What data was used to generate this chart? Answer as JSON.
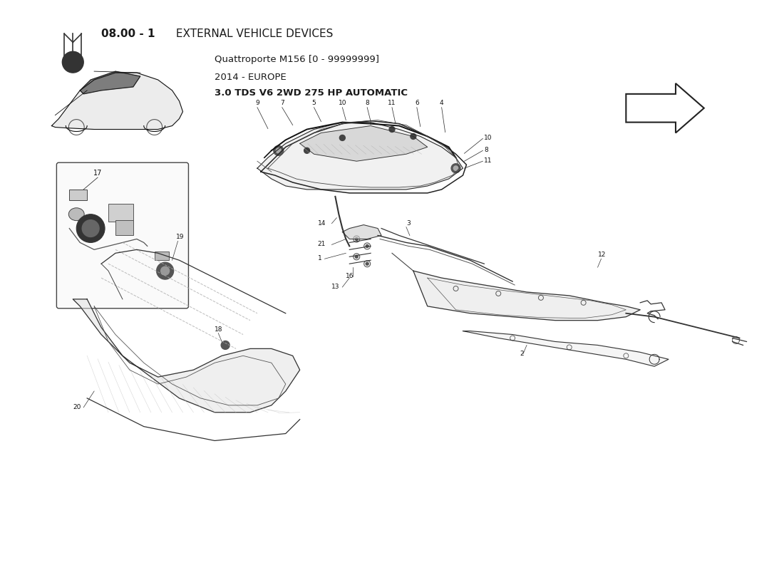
{
  "title_bold": "08.00 - 1",
  "title_normal": " EXTERNAL VEHICLE DEVICES",
  "subtitle_line1": "Quattroporte M156 [0 - 99999999]",
  "subtitle_line2": "2014 - EUROPE",
  "subtitle_line3": "3.0 TDS V6 2WD 275 HP AUTOMATIC",
  "bg_color": "#ffffff",
  "text_color": "#1a1a1a",
  "line_color": "#2a2a2a",
  "light_gray": "#d0d0d0",
  "mid_gray": "#888888",
  "figsize": [
    11.0,
    8.0
  ],
  "dpi": 100
}
